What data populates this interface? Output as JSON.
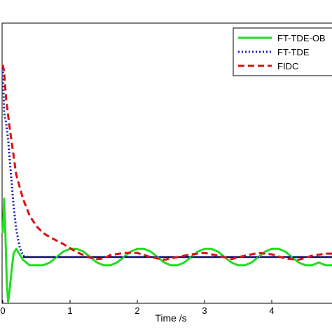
{
  "chart_data": {
    "type": "line",
    "title": "",
    "xlabel": "Time /s",
    "ylabel": "",
    "xlim": [
      0,
      4.9
    ],
    "x_ticks": [
      "0",
      "1",
      "2",
      "3",
      "4"
    ],
    "legend_position": "top-right",
    "grid": false,
    "series": [
      {
        "name": "FT-TDE-OB",
        "color": "#22dd22",
        "style": "solid",
        "x": [
          0,
          0.02,
          0.04,
          0.06,
          0.08,
          0.1,
          0.13,
          0.16,
          0.2,
          0.25,
          0.3,
          0.4,
          0.5,
          0.6,
          0.7,
          0.8,
          0.9,
          1.0,
          1.1,
          1.2,
          1.25,
          1.3,
          1.4,
          1.5,
          1.55,
          1.6,
          1.7,
          1.8,
          1.9,
          2.0,
          2.1,
          2.2,
          2.25,
          2.3,
          2.4,
          2.5,
          2.55,
          2.6,
          2.7,
          2.8,
          2.9,
          3.0,
          3.1,
          3.2,
          3.25,
          3.3,
          3.4,
          3.5,
          3.55,
          3.6,
          3.7,
          3.8,
          3.9,
          4.0,
          4.1,
          4.2,
          4.25,
          4.3,
          4.4,
          4.5,
          4.55,
          4.6,
          4.7,
          4.8,
          4.9
        ],
        "y": [
          0.35,
          0.85,
          0.3,
          -0.4,
          -0.65,
          -0.5,
          -0.2,
          0.05,
          0.12,
          0.04,
          -0.04,
          -0.12,
          -0.12,
          -0.12,
          -0.08,
          0.0,
          0.08,
          0.12,
          0.12,
          0.08,
          0.04,
          0.0,
          -0.08,
          -0.12,
          -0.12,
          -0.12,
          -0.08,
          0.0,
          0.08,
          0.12,
          0.12,
          0.08,
          0.04,
          0.0,
          -0.08,
          -0.12,
          -0.12,
          -0.12,
          -0.08,
          0.0,
          0.08,
          0.12,
          0.12,
          0.08,
          0.04,
          0.0,
          -0.08,
          -0.12,
          -0.12,
          -0.12,
          -0.08,
          0.0,
          0.08,
          0.12,
          0.12,
          0.08,
          0.04,
          0.0,
          -0.08,
          -0.12,
          -0.12,
          -0.12,
          -0.08,
          -0.12,
          -0.12
        ]
      },
      {
        "name": "FT-TDE",
        "color": "#1a1acc",
        "style": "dotted",
        "x": [
          0,
          0.02,
          0.05,
          0.08,
          0.1,
          0.13,
          0.16,
          0.2,
          0.25,
          0.3,
          0.35,
          0.4,
          0.5,
          1.0,
          2.0,
          3.0,
          4.0,
          4.9
        ],
        "y": [
          2.8,
          2.1,
          1.95,
          1.7,
          1.45,
          1.1,
          0.75,
          0.4,
          0.15,
          0.02,
          0.0,
          0.0,
          0.0,
          0.0,
          0.0,
          0.0,
          0.0,
          0.0
        ]
      },
      {
        "name": "FIDC",
        "color": "#dd1111",
        "style": "dashed",
        "x": [
          0,
          0.02,
          0.05,
          0.1,
          0.15,
          0.2,
          0.3,
          0.4,
          0.5,
          0.6,
          0.7,
          0.8,
          0.9,
          1.0,
          1.1,
          1.2,
          1.3,
          1.4,
          1.5,
          1.6,
          1.8,
          2.0,
          2.2,
          2.4,
          2.6,
          2.8,
          3.0,
          3.2,
          3.4,
          3.6,
          3.8,
          4.0,
          4.2,
          4.4,
          4.6,
          4.8,
          4.9
        ],
        "y": [
          2.8,
          2.7,
          2.3,
          1.9,
          1.55,
          1.2,
          0.85,
          0.6,
          0.45,
          0.35,
          0.29,
          0.24,
          0.19,
          0.13,
          0.07,
          0.03,
          -0.01,
          -0.03,
          -0.02,
          0.03,
          0.06,
          0.06,
          0.0,
          -0.04,
          0.0,
          0.04,
          0.06,
          0.02,
          -0.03,
          0.02,
          0.06,
          0.04,
          -0.02,
          -0.04,
          0.02,
          0.05,
          0.05
        ]
      }
    ],
    "reference_line": {
      "color": "#000000",
      "y": 0.0,
      "x_start": 0.3
    }
  }
}
